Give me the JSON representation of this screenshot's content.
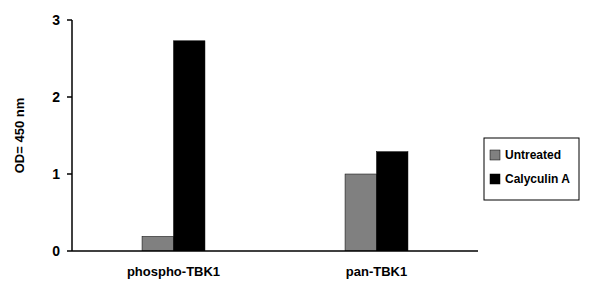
{
  "chart_data": {
    "type": "bar",
    "y_label": "OD= 450 nm",
    "categories": [
      "phospho-TBK1",
      "pan-TBK1"
    ],
    "series": [
      {
        "name": "Untreated",
        "color": "#808080",
        "values": [
          0.19,
          1.0
        ]
      },
      {
        "name": "Calyculin A",
        "color": "#000000",
        "values": [
          2.73,
          1.29
        ]
      }
    ],
    "ylim": [
      0,
      3
    ],
    "yticks": [
      0,
      1,
      2,
      3
    ],
    "grid": false,
    "legend": "right"
  }
}
